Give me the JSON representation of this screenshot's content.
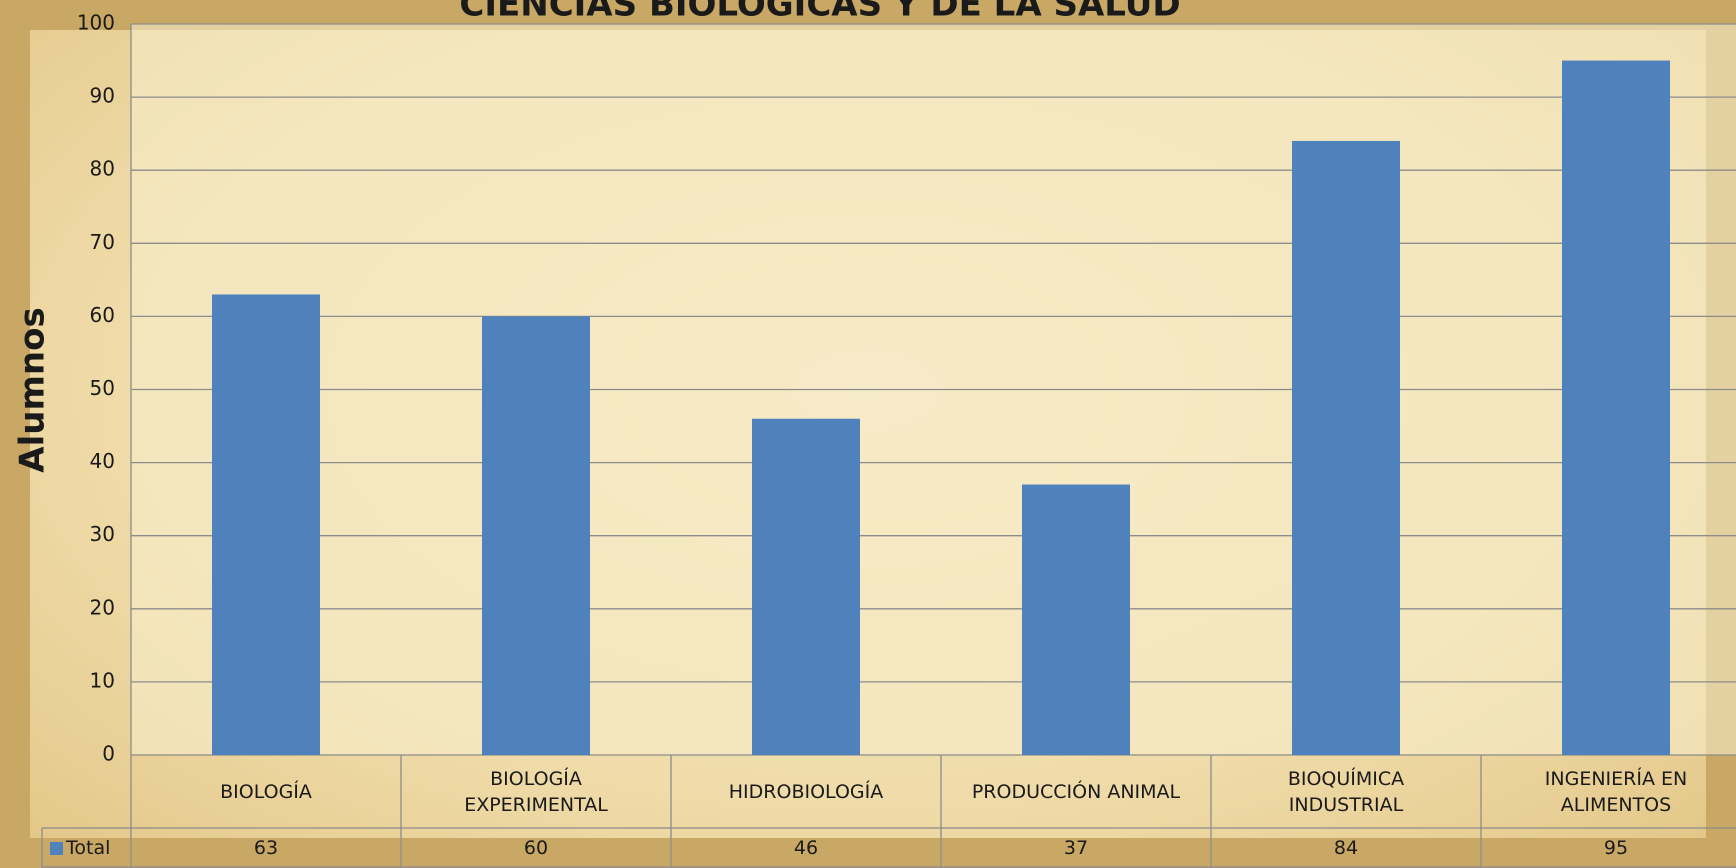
{
  "chart_data": {
    "type": "bar",
    "title": "CIENCIAS BIOLÓGICAS Y DE LA SALUD",
    "y_label": "Alumnos",
    "categories": [
      "BIOLOGÍA",
      "BIOLOGÍA\nEXPERIMENTAL",
      "HIDROBIOLOGÍA",
      "PRODUCCIÓN ANIMAL",
      "BIOQUÍMICA\nINDUSTRIAL",
      "INGENIERÍA EN\nALIMENTOS"
    ],
    "series": [
      {
        "name": "Total",
        "color": "#4f81bd",
        "values": [
          63,
          60,
          46,
          37,
          84,
          95
        ]
      }
    ],
    "ylim": [
      0,
      100
    ],
    "yticks": [
      0,
      10,
      20,
      30,
      40,
      50,
      60,
      70,
      80,
      90,
      100
    ],
    "grid": true
  }
}
